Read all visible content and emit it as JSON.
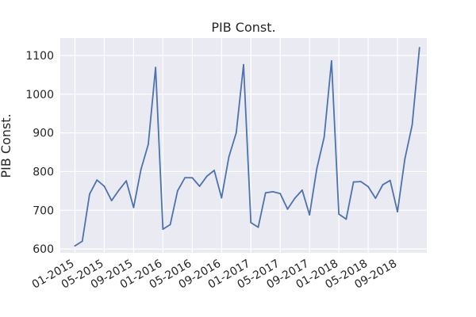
{
  "chart_data": {
    "type": "line",
    "title": "PIB Const.",
    "xlabel": "",
    "ylabel": "PIB Const.",
    "ylim": [
      590,
      1145
    ],
    "xlim": [
      "2014-11-01",
      "2019-01-01"
    ],
    "yticks": [
      600,
      700,
      800,
      900,
      1000,
      1100
    ],
    "xticks": [
      "01-2015",
      "05-2015",
      "09-2015",
      "01-2016",
      "05-2016",
      "09-2016",
      "01-2017",
      "05-2017",
      "09-2017",
      "01-2018",
      "05-2018",
      "09-2018"
    ],
    "grid": true,
    "background": "#eaeaf2",
    "series": [
      {
        "color": "#4c72b0",
        "x": [
          "2015-01",
          "2015-02",
          "2015-03",
          "2015-04",
          "2015-05",
          "2015-06",
          "2015-07",
          "2015-08",
          "2015-09",
          "2015-10",
          "2015-11",
          "2015-12",
          "2016-01",
          "2016-02",
          "2016-03",
          "2016-04",
          "2016-05",
          "2016-06",
          "2016-07",
          "2016-08",
          "2016-09",
          "2016-10",
          "2016-11",
          "2016-12",
          "2017-01",
          "2017-02",
          "2017-03",
          "2017-04",
          "2017-05",
          "2017-06",
          "2017-07",
          "2017-08",
          "2017-09",
          "2017-10",
          "2017-11",
          "2017-12",
          "2018-01",
          "2018-02",
          "2018-03",
          "2018-04",
          "2018-05",
          "2018-06",
          "2018-07",
          "2018-08",
          "2018-09",
          "2018-10",
          "2018-11",
          "2018-12"
        ],
        "y": [
          608,
          620,
          742,
          778,
          762,
          725,
          752,
          776,
          707,
          805,
          870,
          1069,
          651,
          663,
          750,
          784,
          784,
          762,
          788,
          803,
          732,
          838,
          900,
          1076,
          668,
          656,
          745,
          748,
          743,
          703,
          731,
          752,
          688,
          808,
          889,
          1086,
          690,
          677,
          773,
          774,
          761,
          731,
          766,
          777,
          696,
          832,
          920,
          1120
        ]
      }
    ]
  }
}
